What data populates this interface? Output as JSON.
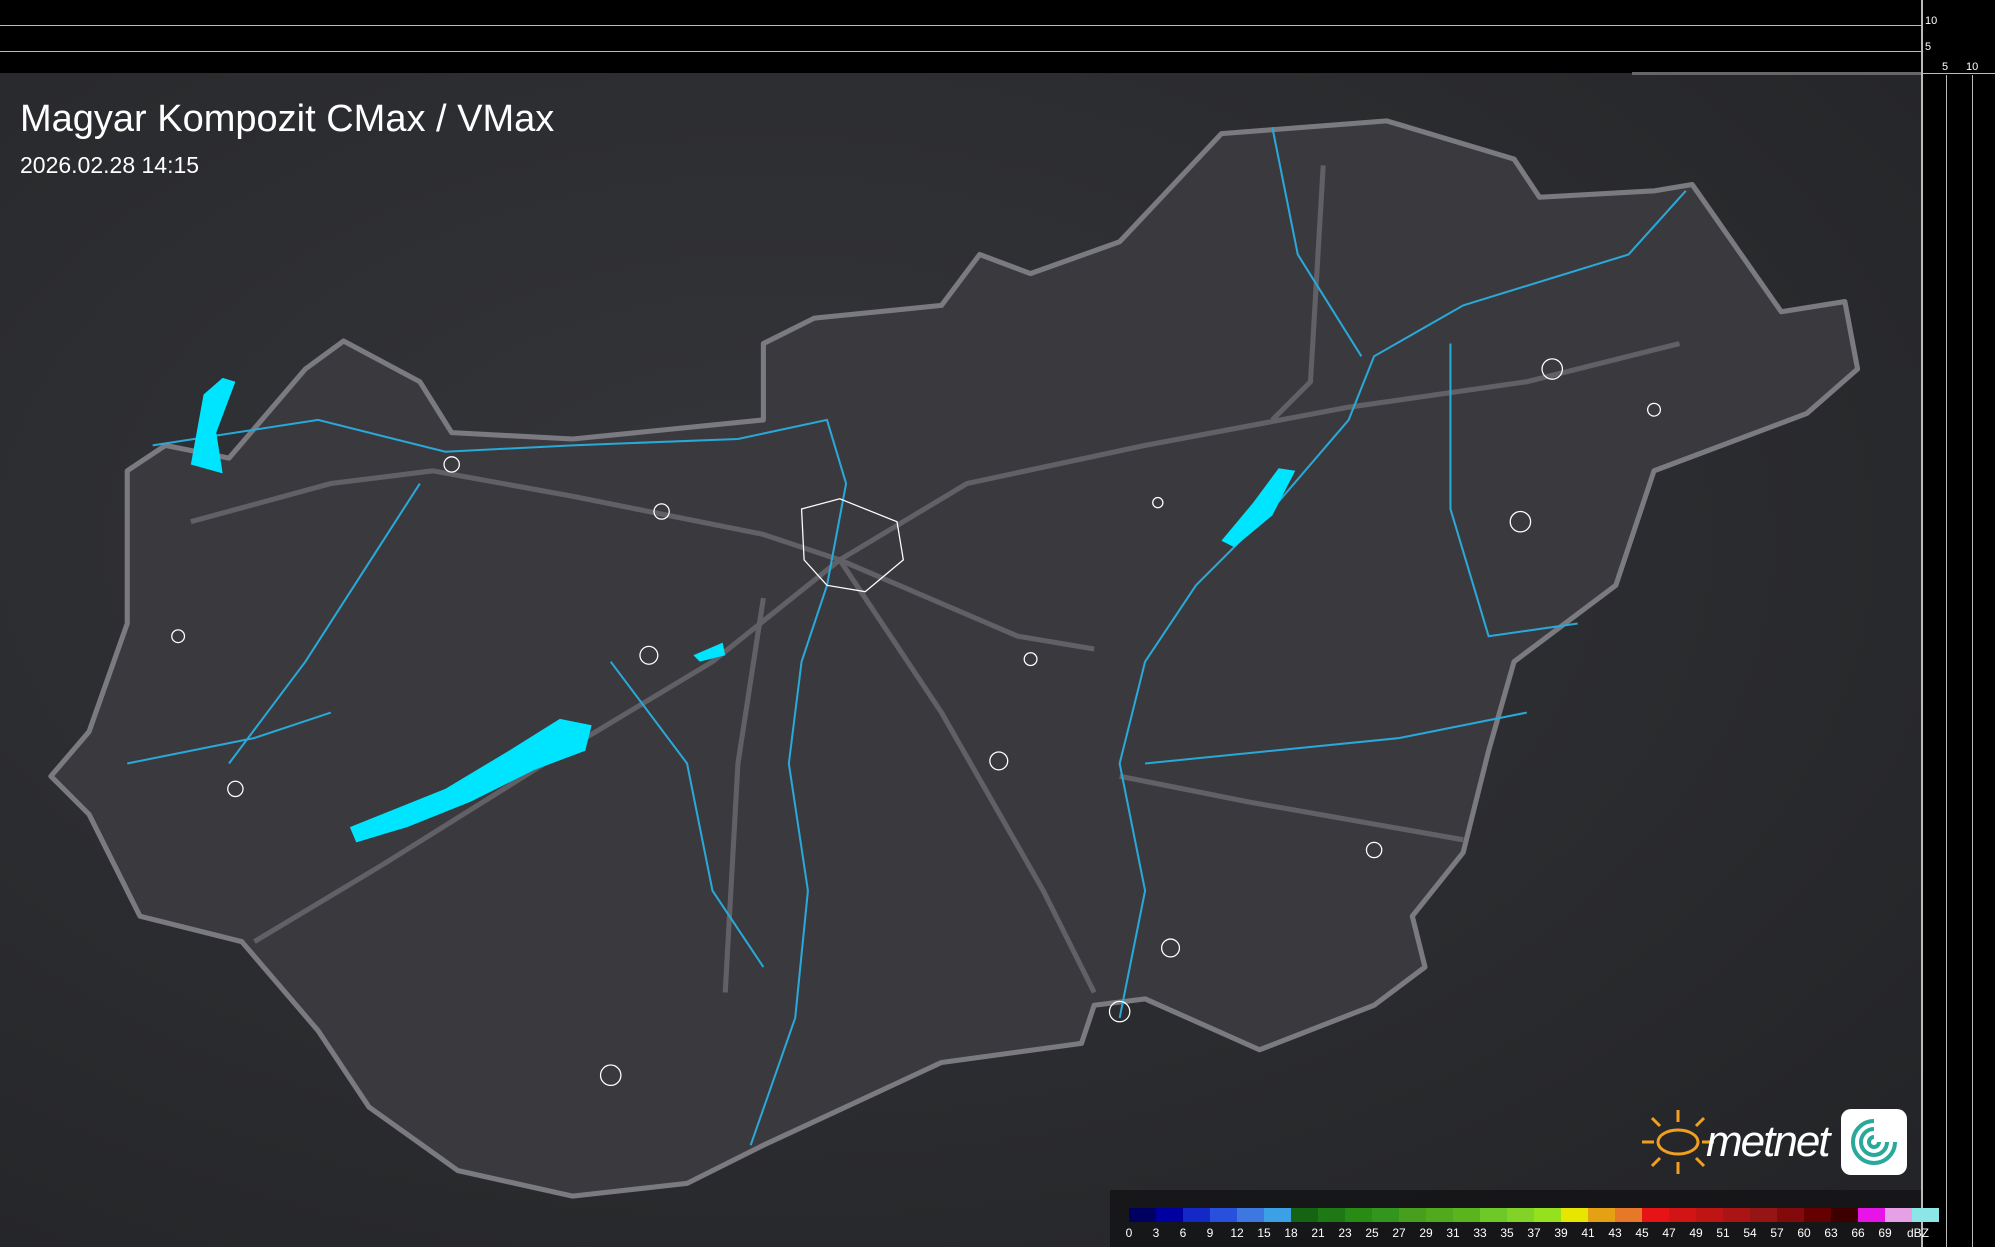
{
  "header": {
    "title": "Magyar Kompozit CMax / VMax",
    "timestamp": "2026.02.28 14:15"
  },
  "scale": {
    "vertical_labels": [
      "10",
      "5"
    ],
    "horizontal_labels": [
      "5",
      "10"
    ]
  },
  "legend": {
    "unit": "dBZ",
    "labels": [
      "0",
      "3",
      "6",
      "9",
      "12",
      "15",
      "18",
      "21",
      "23",
      "25",
      "27",
      "29",
      "31",
      "33",
      "35",
      "37",
      "39",
      "41",
      "43",
      "45",
      "47",
      "49",
      "51",
      "54",
      "57",
      "60",
      "63",
      "66",
      "69"
    ],
    "colors": [
      "#000060",
      "#0000a0",
      "#1428c8",
      "#2850dc",
      "#3c78e0",
      "#3ca0e6",
      "#146414",
      "#1e7814",
      "#288c14",
      "#32961e",
      "#46a01e",
      "#50aa1e",
      "#5ab41e",
      "#6ec828",
      "#82d228",
      "#96e11e",
      "#e6e600",
      "#e6a014",
      "#e67828",
      "#e61414",
      "#d21414",
      "#be1414",
      "#aa1414",
      "#961414",
      "#820a0a",
      "#640000",
      "#3c0000",
      "#e614e6",
      "#e6a0e6",
      "#8ce6e6"
    ]
  },
  "brand": {
    "name": "metnet",
    "sun_color": "#f0a020",
    "lake_color": "#00e5ff",
    "river_color": "#2aa8d8"
  }
}
